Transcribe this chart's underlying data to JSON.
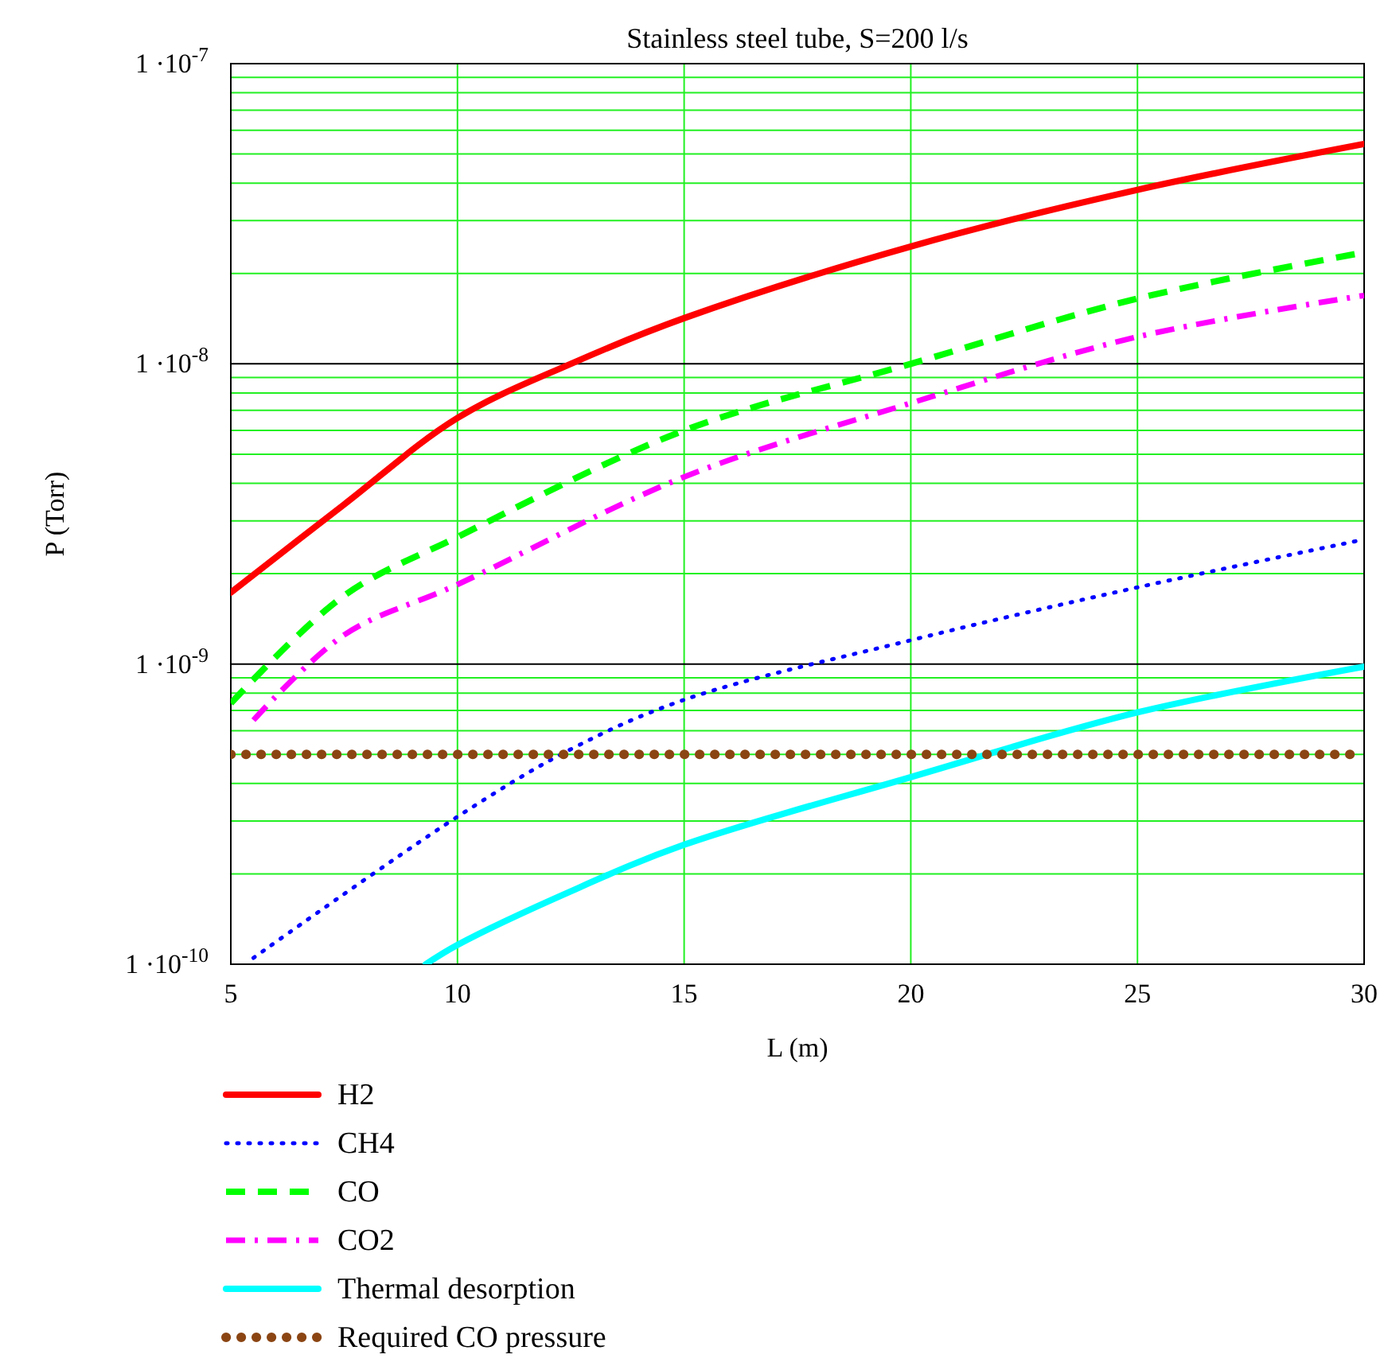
{
  "chart_data": {
    "type": "line",
    "title": "Stainless steel tube, S=200 l/s",
    "xlabel": "L (m)",
    "ylabel": "P (Torr)",
    "xlim": [
      5,
      30
    ],
    "xticks": [
      5,
      10,
      15,
      20,
      25,
      30
    ],
    "ylim": [
      1e-10,
      1e-07
    ],
    "log": true,
    "yticks": [
      {
        "value": 1e-10,
        "label": "1 ·10$^{-10}$"
      },
      {
        "value": 2e-10,
        "label": null
      },
      {
        "value": 3e-10,
        "label": null
      },
      {
        "value": 4e-10,
        "label": null
      },
      {
        "value": 5e-10,
        "label": null
      },
      {
        "value": 6e-10,
        "label": null
      },
      {
        "value": 7e-10,
        "label": null
      },
      {
        "value": 8e-10,
        "label": null
      },
      {
        "value": 9e-10,
        "label": null
      },
      {
        "value": 1e-09,
        "label": "1 ·10$^{-9}$"
      },
      {
        "value": 2e-09,
        "label": null
      },
      {
        "value": 3e-09,
        "label": null
      },
      {
        "value": 4e-09,
        "label": null
      },
      {
        "value": 5e-09,
        "label": null
      },
      {
        "value": 6e-09,
        "label": null
      },
      {
        "value": 7e-09,
        "label": null
      },
      {
        "value": 8e-09,
        "label": null
      },
      {
        "value": 9e-09,
        "label": null
      },
      {
        "value": 1e-08,
        "label": "1 ·10$^{-8}$"
      },
      {
        "value": 2e-08,
        "label": null
      },
      {
        "value": 3e-08,
        "label": null
      },
      {
        "value": 4e-08,
        "label": null
      },
      {
        "value": 5e-08,
        "label": null
      },
      {
        "value": 6e-08,
        "label": null
      },
      {
        "value": 7e-08,
        "label": null
      },
      {
        "value": 8e-08,
        "label": null
      },
      {
        "value": 9e-08,
        "label": null
      },
      {
        "value": 1e-07,
        "label": "1 ·10$^{-7}$"
      }
    ],
    "grid": true,
    "legend": "bottom",
    "series": [
      {
        "name": "H2",
        "color": "#ff0000",
        "line_style": "solid",
        "x": [
          5,
          7.5,
          10,
          12.5,
          15,
          20,
          25,
          30
        ],
        "values": [
          1.73e-09,
          3.4e-09,
          6.6e-09,
          1e-08,
          1.42e-08,
          2.46e-08,
          3.8e-08,
          5.4e-08
        ]
      },
      {
        "name": "CH4",
        "color": "#0000ff",
        "line_style": "dotted",
        "x": [
          5.5,
          10,
          12.5,
          15,
          20,
          25,
          30
        ],
        "values": [
          1.05e-10,
          3.1e-10,
          5.2e-10,
          7.6e-10,
          1.2e-09,
          1.8e-09,
          2.6e-09
        ]
      },
      {
        "name": "CO",
        "color": "#00ff00",
        "line_style": "dashed",
        "x": [
          5,
          7.5,
          10,
          15,
          20,
          25,
          30
        ],
        "values": [
          7.4e-10,
          1.69e-09,
          2.65e-09,
          6e-09,
          1e-08,
          1.65e-08,
          2.35e-08
        ]
      },
      {
        "name": "CO2",
        "color": "#ff00ff",
        "line_style": "dashdot",
        "x": [
          5.5,
          7.5,
          10,
          15,
          20,
          25,
          30
        ],
        "values": [
          6.5e-10,
          1.25e-09,
          1.84e-09,
          4.2e-09,
          7.4e-09,
          1.23e-08,
          1.69e-08
        ]
      },
      {
        "name": "Thermal desorption",
        "color": "#00ffff",
        "line_style": "solid",
        "x": [
          9.3,
          10,
          12.5,
          15,
          20,
          25,
          30
        ],
        "values": [
          1e-10,
          1.16e-10,
          1.75e-10,
          2.5e-10,
          4.2e-10,
          6.9e-10,
          9.8e-10
        ]
      },
      {
        "name": "Required CO pressure",
        "color": "#8b4513",
        "line_style": "bigdots",
        "x": [
          5,
          30
        ],
        "values": [
          5e-10,
          5e-10
        ]
      }
    ]
  }
}
